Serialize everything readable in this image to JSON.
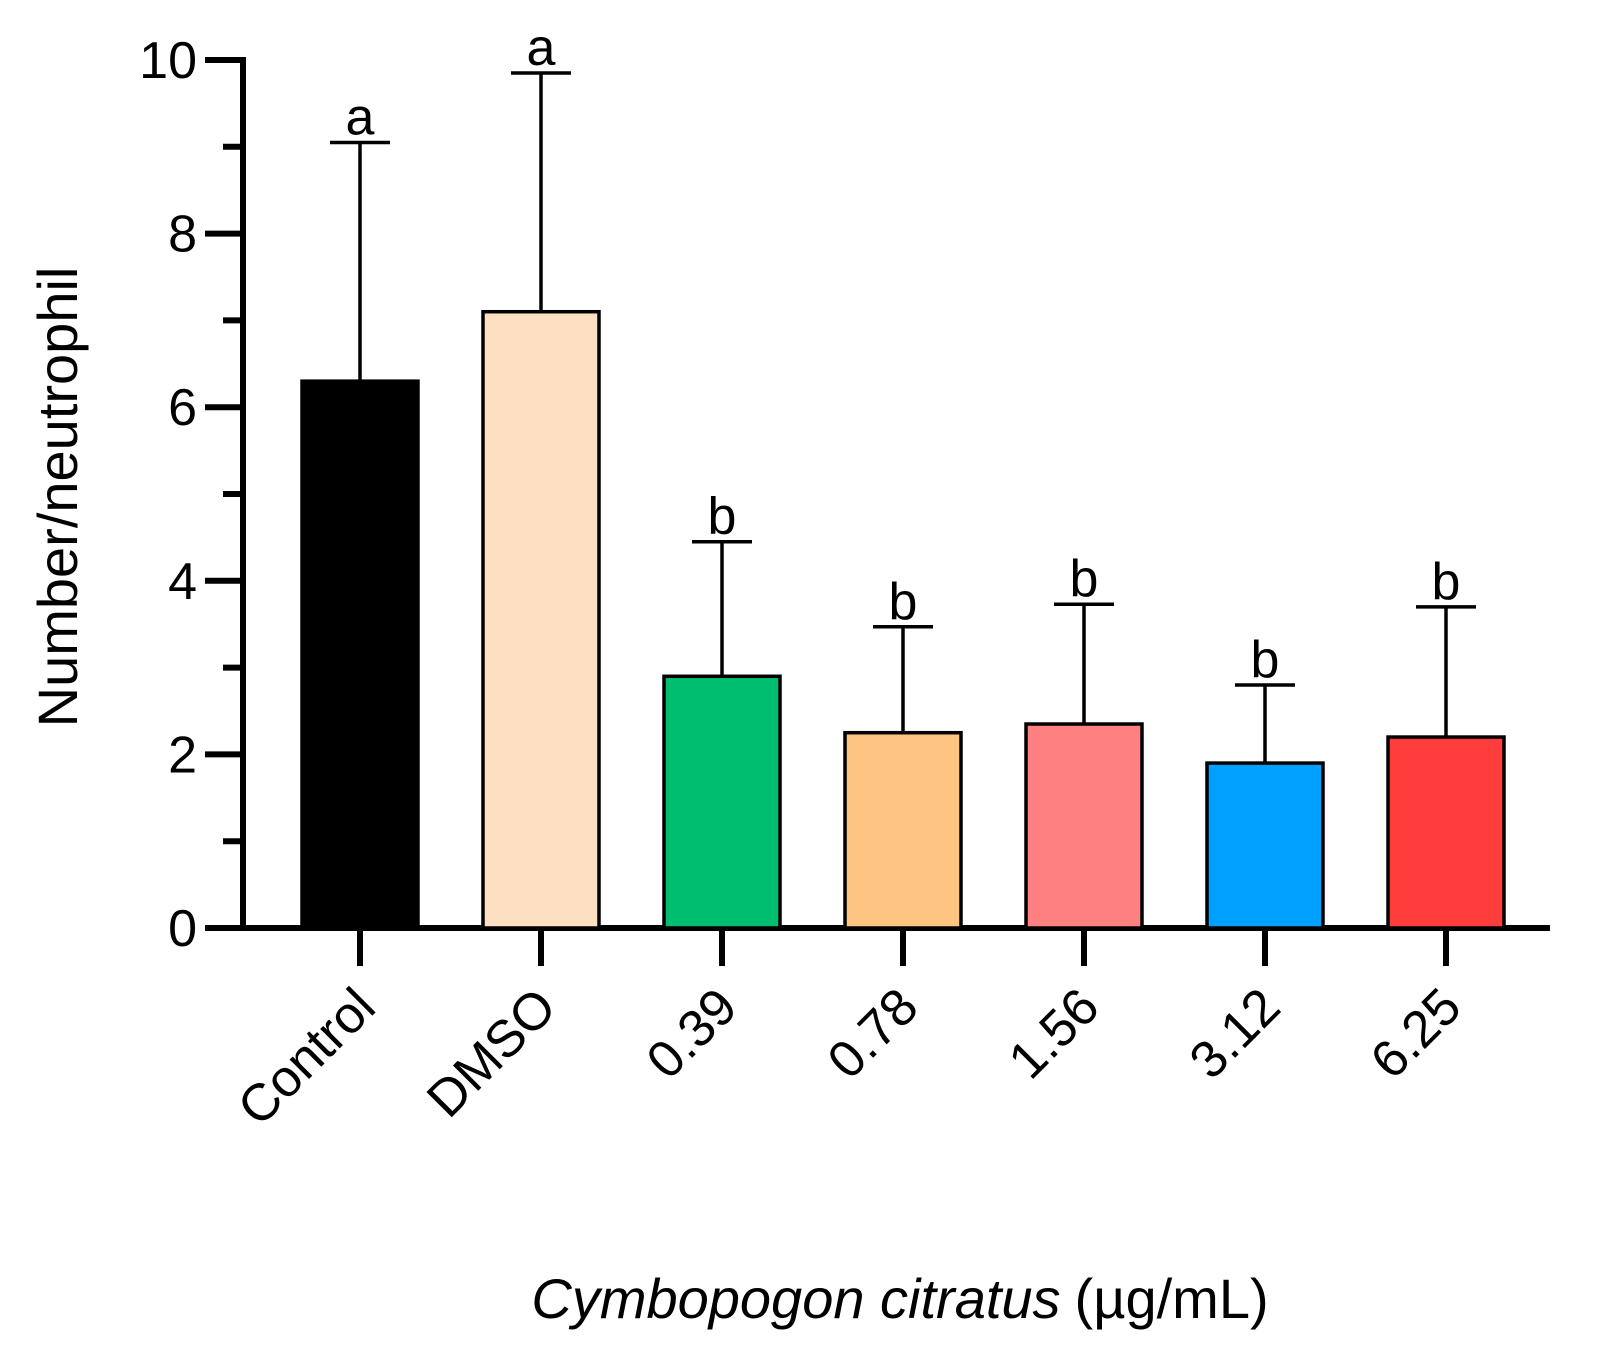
{
  "chart_data": {
    "type": "bar",
    "title": "",
    "ylabel": "Number/neutrophil",
    "xlabel_italic": "Cymbopogon citratus",
    "xlabel_unit": "(µg/mL)",
    "ylim": [
      0,
      10
    ],
    "yticks": [
      "0",
      "2",
      "4",
      "6",
      "8",
      "10"
    ],
    "categories": [
      "Control",
      "DMSO",
      "0.39",
      "0.78",
      "1.56",
      "3.12",
      "6.25"
    ],
    "values": [
      6.3,
      7.1,
      2.9,
      2.25,
      2.35,
      1.9,
      2.2
    ],
    "error_upper": [
      9.05,
      9.85,
      4.45,
      3.47,
      3.73,
      2.8,
      3.7
    ],
    "significance": [
      "a",
      "a",
      "b",
      "b",
      "b",
      "b",
      "b"
    ],
    "colors": [
      "#000000",
      "#fde0c2",
      "#00be70",
      "#fec482",
      "#ff8080",
      "#00a0ff",
      "#ff3d3d"
    ],
    "grid": false,
    "legend": "none"
  }
}
